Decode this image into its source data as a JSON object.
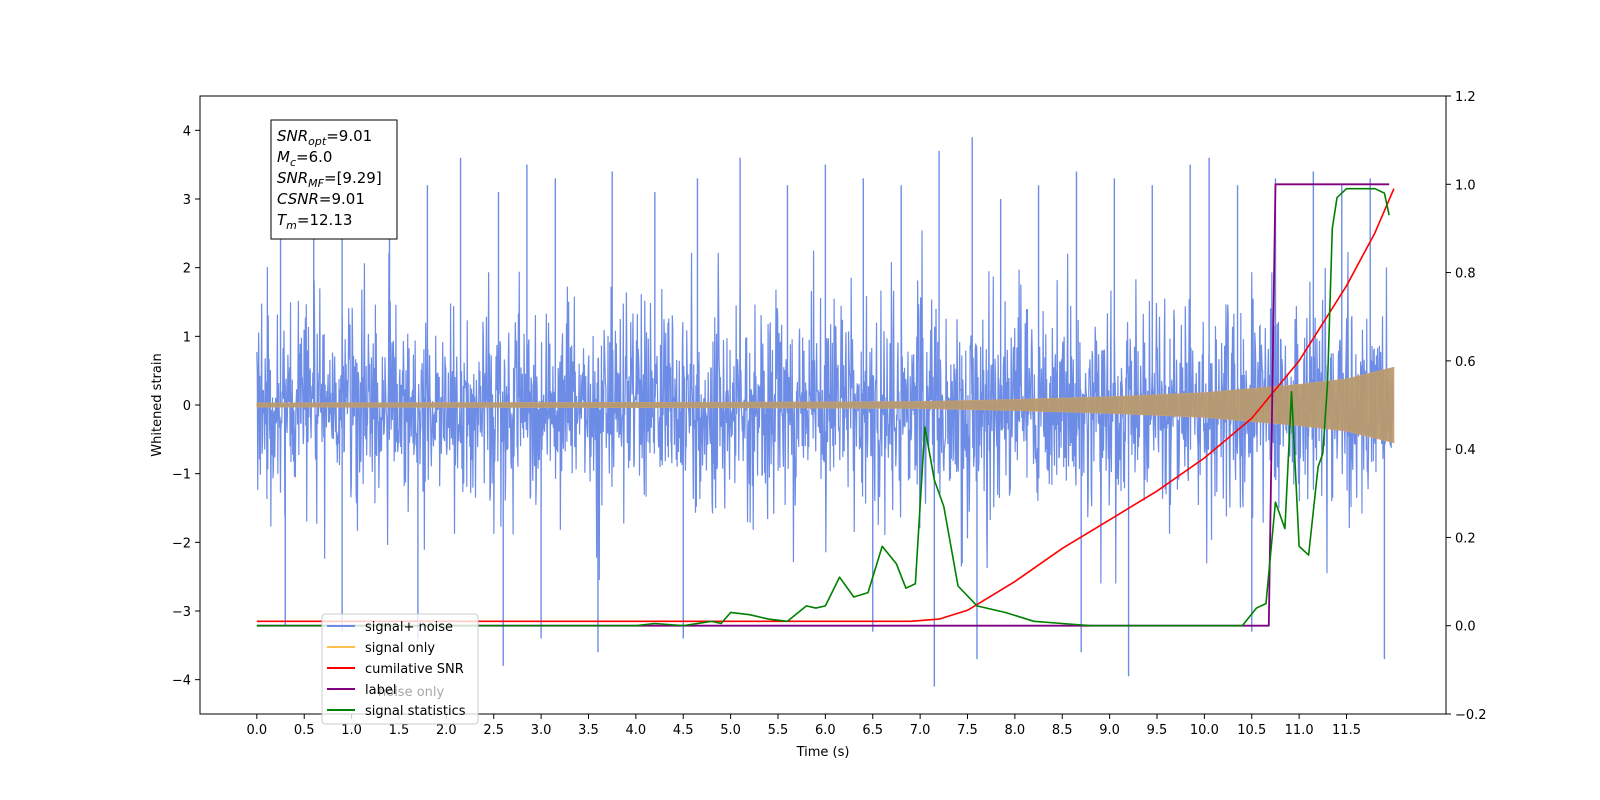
{
  "chart_data": {
    "type": "line",
    "xlabel": "Time (s)",
    "ylabel": "Whitened strain",
    "xlim": [
      -0.6,
      12.55
    ],
    "ylim": [
      -4.5,
      4.5
    ],
    "y2lim": [
      -0.2,
      1.2
    ],
    "x_ticks": [
      "0.0",
      "0.5",
      "1.0",
      "1.5",
      "2.0",
      "2.5",
      "3.0",
      "3.5",
      "4.0",
      "4.5",
      "5.0",
      "5.5",
      "6.0",
      "6.5",
      "7.0",
      "7.5",
      "8.0",
      "8.5",
      "9.0",
      "9.5",
      "10.0",
      "10.5",
      "11.0",
      "11.5"
    ],
    "y_ticks": [
      "−4",
      "−3",
      "−2",
      "−1",
      "0",
      "1",
      "2",
      "3",
      "4"
    ],
    "y2_ticks": [
      "−0.2",
      "0.0",
      "0.2",
      "0.4",
      "0.6",
      "0.8",
      "1.0",
      "1.2"
    ],
    "annotation": [
      {
        "base": "SNR",
        "sub": "opt",
        "rest": "=9.01"
      },
      {
        "base": "M",
        "sub": "c",
        "rest": "=6.0"
      },
      {
        "base": "SNR",
        "sub": "MF",
        "rest": "=[9.29]"
      },
      {
        "base": "CSNR",
        "sub": "",
        "rest": "=9.01"
      },
      {
        "base": "T",
        "sub": "m",
        "rest": "=12.13"
      }
    ],
    "legend": {
      "placement": "lower-left",
      "entries": [
        {
          "label": "signal+ noise",
          "color": "#6d8ce6"
        },
        {
          "label": "signal only",
          "color": "#ffc04d"
        },
        {
          "label": "cumilative SNR",
          "color": "#ff0000"
        },
        {
          "label": "label",
          "color": "#800080"
        },
        {
          "label": "signal statistics",
          "color": "#008000"
        }
      ],
      "hidden_entries": [
        "noise only"
      ]
    },
    "series": [
      {
        "name": "signal+ noise",
        "axis": "left",
        "color": "#6d8ce6",
        "description_envelope": {
          "x_start": 0.0,
          "x_end": 12.0,
          "typical_amplitude": 1.35,
          "peak_high": [
            [
              0.25,
              3.3
            ],
            [
              0.6,
              3.5
            ],
            [
              0.9,
              3.0
            ],
            [
              1.4,
              3.4
            ],
            [
              1.8,
              3.2
            ],
            [
              2.15,
              3.6
            ],
            [
              2.55,
              3.1
            ],
            [
              2.85,
              3.5
            ],
            [
              3.15,
              3.3
            ],
            [
              3.75,
              3.4
            ],
            [
              4.2,
              3.1
            ],
            [
              4.65,
              3.3
            ],
            [
              5.1,
              3.6
            ],
            [
              5.6,
              3.2
            ],
            [
              6.0,
              3.5
            ],
            [
              6.4,
              3.3
            ],
            [
              6.8,
              3.2
            ],
            [
              7.2,
              3.7
            ],
            [
              7.55,
              3.9
            ],
            [
              7.85,
              3.0
            ],
            [
              8.25,
              3.2
            ],
            [
              8.65,
              3.4
            ],
            [
              9.05,
              3.3
            ],
            [
              9.45,
              3.2
            ],
            [
              9.85,
              3.5
            ],
            [
              10.05,
              3.6
            ],
            [
              10.35,
              3.2
            ],
            [
              10.75,
              3.3
            ],
            [
              11.15,
              3.4
            ],
            [
              11.45,
              3.2
            ],
            [
              11.75,
              3.3
            ]
          ],
          "peak_low": [
            [
              0.3,
              -3.2
            ],
            [
              0.9,
              -3.3
            ],
            [
              1.7,
              -3.4
            ],
            [
              2.6,
              -3.8
            ],
            [
              3.0,
              -3.4
            ],
            [
              3.6,
              -3.6
            ],
            [
              4.5,
              -3.4
            ],
            [
              6.5,
              -3.3
            ],
            [
              7.15,
              -4.1
            ],
            [
              7.6,
              -3.7
            ],
            [
              8.7,
              -3.6
            ],
            [
              9.2,
              -3.95
            ],
            [
              10.5,
              -3.3
            ],
            [
              11.9,
              -3.7
            ]
          ]
        }
      },
      {
        "name": "signal only",
        "axis": "left",
        "color": "#ffc04d",
        "envelope_x": [
          0.0,
          5.0,
          7.0,
          8.0,
          9.0,
          10.0,
          10.5,
          11.0,
          11.5,
          12.0
        ],
        "envelope_amp": [
          0.03,
          0.04,
          0.05,
          0.08,
          0.12,
          0.18,
          0.24,
          0.3,
          0.38,
          0.55
        ]
      },
      {
        "name": "cumilative SNR",
        "axis": "right",
        "color": "#ff0000",
        "x": [
          0.0,
          6.9,
          7.2,
          7.5,
          8.0,
          8.5,
          9.0,
          9.5,
          10.0,
          10.5,
          11.0,
          11.5,
          11.8,
          12.0
        ],
        "values": [
          0.01,
          0.01,
          0.015,
          0.035,
          0.1,
          0.175,
          0.24,
          0.305,
          0.38,
          0.47,
          0.6,
          0.77,
          0.89,
          0.99
        ]
      },
      {
        "name": "label",
        "axis": "right",
        "color": "#800080",
        "x": [
          0.0,
          10.68,
          10.75,
          11.95
        ],
        "values": [
          0.0,
          0.0,
          1.0,
          1.0
        ]
      },
      {
        "name": "signal statistics",
        "axis": "right",
        "color": "#008000",
        "x": [
          0.0,
          4.0,
          4.2,
          4.5,
          4.8,
          4.9,
          5.0,
          5.2,
          5.4,
          5.6,
          5.8,
          5.9,
          6.0,
          6.15,
          6.3,
          6.45,
          6.6,
          6.75,
          6.85,
          6.95,
          7.05,
          7.15,
          7.25,
          7.4,
          7.6,
          7.9,
          8.2,
          8.5,
          8.8,
          9.2,
          9.6,
          10.0,
          10.4,
          10.55,
          10.65,
          10.75,
          10.85,
          10.92,
          11.0,
          11.1,
          11.2,
          11.25,
          11.3,
          11.35,
          11.4,
          11.5,
          11.6,
          11.7,
          11.8,
          11.9,
          11.95
        ],
        "values": [
          0.0,
          0.0,
          0.005,
          0.0,
          0.01,
          0.005,
          0.03,
          0.025,
          0.015,
          0.01,
          0.045,
          0.04,
          0.045,
          0.11,
          0.065,
          0.075,
          0.18,
          0.14,
          0.085,
          0.095,
          0.45,
          0.33,
          0.27,
          0.09,
          0.045,
          0.03,
          0.01,
          0.005,
          0.0,
          0.0,
          0.0,
          0.0,
          0.0,
          0.04,
          0.05,
          0.28,
          0.22,
          0.53,
          0.18,
          0.16,
          0.36,
          0.39,
          0.55,
          0.9,
          0.97,
          0.99,
          0.99,
          0.99,
          0.99,
          0.98,
          0.93
        ]
      }
    ]
  }
}
